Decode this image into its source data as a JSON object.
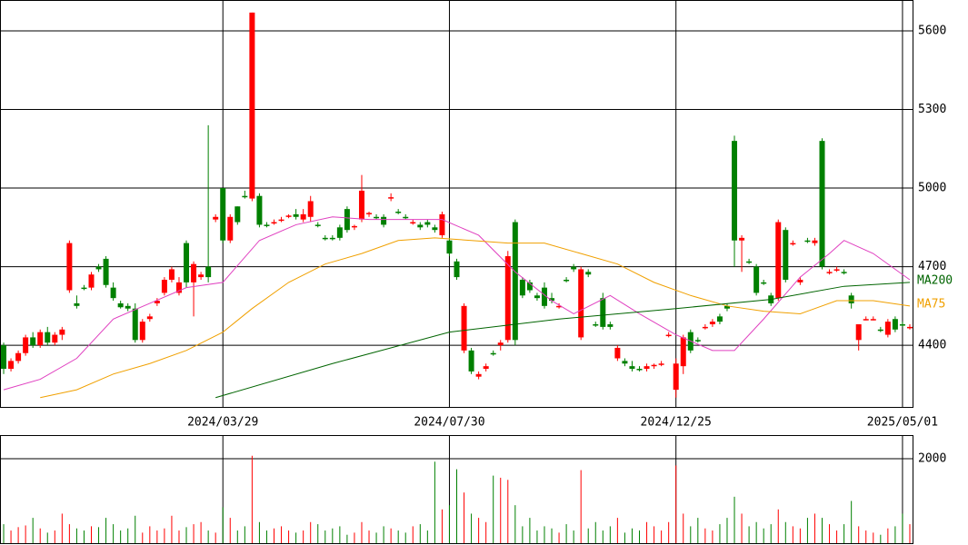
{
  "chart_data": {
    "type": "candlestick",
    "categories": [
      null,
      null,
      null,
      null,
      null,
      null,
      null,
      null,
      null,
      null,
      null,
      null,
      null,
      null,
      null,
      null,
      null,
      null,
      null,
      null,
      null,
      null,
      null,
      null,
      null,
      null,
      null,
      null,
      null,
      null,
      "2024/03/29",
      null,
      null,
      null,
      null,
      null,
      null,
      null,
      null,
      null,
      null,
      null,
      null,
      null,
      null,
      null,
      null,
      null,
      null,
      null,
      null,
      null,
      null,
      null,
      null,
      null,
      null,
      null,
      null,
      null,
      null,
      "2024/07/30",
      null,
      null,
      null,
      null,
      null,
      null,
      null,
      null,
      null,
      null,
      null,
      null,
      null,
      null,
      null,
      null,
      null,
      null,
      null,
      null,
      null,
      null,
      null,
      null,
      null,
      null,
      null,
      null,
      null,
      null,
      "2024/12/25",
      null,
      null,
      null,
      null,
      null,
      null,
      null,
      null,
      null,
      null,
      null,
      null,
      null,
      null,
      null,
      null,
      null,
      null,
      null,
      null,
      null,
      null,
      null,
      null,
      null,
      null,
      null,
      null,
      null,
      null,
      "2025/05/01",
      null
    ],
    "open": [
      4400,
      4310,
      4340,
      4370,
      4430,
      4400,
      4450,
      4410,
      4440,
      4610,
      4560,
      4620,
      4620,
      4700,
      4730,
      4620,
      4560,
      4550,
      4540,
      4420,
      4500,
      4560,
      4600,
      4650,
      4600,
      4790,
      4640,
      4660,
      4700,
      4880,
      5000,
      4800,
      4930,
      4970,
      4960,
      4970,
      4860,
      4870,
      4880,
      4890,
      4900,
      4880,
      4890,
      4860,
      4810,
      4810,
      4850,
      4920,
      4850,
      4880,
      4900,
      4890,
      4890,
      4960,
      4910,
      4890,
      4870,
      4860,
      4870,
      4850,
      4820,
      4800,
      4720,
      4380,
      4380,
      4280,
      4310,
      4370,
      4400,
      4420,
      4870,
      4650,
      4640,
      4590,
      4620,
      4580,
      4550,
      4650,
      4700,
      4430,
      4680,
      4480,
      4580,
      4480,
      4350,
      4340,
      4320,
      4310,
      4310,
      4320,
      4330,
      4440,
      4230,
      4320,
      4450,
      4420,
      4470,
      4480,
      4510,
      4550,
      5180,
      4800,
      4720,
      4700,
      4640,
      4590,
      4580,
      4840,
      4790,
      4640,
      4800,
      4790,
      5180,
      4680,
      4690,
      4680,
      4590,
      4420,
      4500,
      4500,
      4460,
      4440,
      4500,
      4480,
      4470
    ],
    "high": [
      4410,
      4350,
      4380,
      4440,
      4450,
      4460,
      4470,
      4450,
      4470,
      4800,
      4590,
      4630,
      4680,
      4710,
      4740,
      4640,
      4570,
      4560,
      4560,
      4500,
      4520,
      4580,
      4660,
      4700,
      4660,
      4800,
      4720,
      4680,
      5240,
      4900,
      5000,
      4900,
      4930,
      4990,
      5670,
      4980,
      4870,
      4880,
      4890,
      4900,
      4920,
      4920,
      4970,
      4870,
      4820,
      4820,
      4860,
      4930,
      4860,
      5050,
      4910,
      4900,
      4900,
      4980,
      4920,
      4900,
      4880,
      4870,
      4880,
      4860,
      4910,
      4810,
      4730,
      4560,
      4390,
      4300,
      4330,
      4380,
      4420,
      4760,
      4880,
      4660,
      4650,
      4600,
      4640,
      4600,
      4560,
      4660,
      4710,
      4700,
      4690,
      4490,
      4600,
      4490,
      4400,
      4350,
      4340,
      4320,
      4330,
      4330,
      4340,
      4450,
      4350,
      4440,
      4460,
      4430,
      4480,
      4500,
      4520,
      4560,
      5200,
      4820,
      4730,
      4710,
      4650,
      4600,
      4880,
      4850,
      4800,
      4660,
      4810,
      4810,
      5190,
      4690,
      4700,
      4690,
      4600,
      4480,
      4510,
      4510,
      4470,
      4500,
      4510,
      4490,
      4480
    ],
    "low": [
      4290,
      4300,
      4330,
      4360,
      4390,
      4390,
      4400,
      4400,
      4420,
      4600,
      4540,
      4610,
      4610,
      4680,
      4620,
      4570,
      4540,
      4530,
      4410,
      4410,
      4490,
      4550,
      4590,
      4640,
      4590,
      4620,
      4510,
      4650,
      4640,
      4870,
      4790,
      4790,
      4860,
      4960,
      4950,
      4850,
      4850,
      4860,
      4870,
      4885,
      4880,
      4870,
      4870,
      4850,
      4800,
      4800,
      4800,
      4830,
      4840,
      4870,
      4890,
      4880,
      4850,
      4950,
      4900,
      4880,
      4860,
      4840,
      4850,
      4830,
      4810,
      4740,
      4650,
      4370,
      4290,
      4270,
      4300,
      4360,
      4380,
      4410,
      4400,
      4580,
      4600,
      4570,
      4540,
      4560,
      4540,
      4640,
      4680,
      4420,
      4660,
      4470,
      4460,
      4460,
      4340,
      4320,
      4300,
      4300,
      4300,
      4310,
      4320,
      4430,
      4200,
      4290,
      4370,
      4410,
      4460,
      4470,
      4480,
      4530,
      4700,
      4680,
      4710,
      4590,
      4630,
      4550,
      4570,
      4640,
      4780,
      4630,
      4790,
      4780,
      4690,
      4670,
      4680,
      4670,
      4540,
      4380,
      4495,
      4495,
      4450,
      4430,
      4450,
      4470,
      4460
    ],
    "close": [
      4310,
      4340,
      4370,
      4430,
      4400,
      4450,
      4410,
      4440,
      4460,
      4790,
      4550,
      4615,
      4670,
      4690,
      4630,
      4580,
      4545,
      4540,
      4420,
      4490,
      4510,
      4570,
      4650,
      4690,
      4640,
      4640,
      4710,
      4670,
      4660,
      4890,
      4800,
      4890,
      4870,
      4965,
      5670,
      4860,
      4855,
      4870,
      4880,
      4895,
      4890,
      4900,
      4950,
      4855,
      4805,
      4805,
      4810,
      4840,
      4855,
      4990,
      4905,
      4885,
      4860,
      4965,
      4905,
      4885,
      4870,
      4850,
      4860,
      4840,
      4900,
      4750,
      4660,
      4550,
      4300,
      4290,
      4320,
      4365,
      4410,
      4740,
      4420,
      4590,
      4610,
      4580,
      4550,
      4570,
      4550,
      4645,
      4690,
      4690,
      4670,
      4475,
      4470,
      4470,
      4390,
      4330,
      4310,
      4305,
      4320,
      4325,
      4330,
      4440,
      4330,
      4430,
      4380,
      4415,
      4470,
      4490,
      4490,
      4540,
      4800,
      4810,
      4715,
      4600,
      4635,
      4560,
      4870,
      4650,
      4790,
      4650,
      4795,
      4800,
      4700,
      4680,
      4690,
      4675,
      4560,
      4480,
      4500,
      4500,
      4455,
      4490,
      4460,
      4475,
      4470
    ],
    "up_color": "#ff0000",
    "down_color": "#008000",
    "ylim": [
      4161,
      5718
    ],
    "yticks": [
      4400,
      4700,
      5000,
      5300,
      5600
    ],
    "moving_averages": [
      {
        "color": "#e040c0",
        "x": [
          0,
          5,
          10,
          15,
          20,
          25,
          30,
          35,
          40,
          45,
          50,
          55,
          60,
          65,
          70,
          75,
          78,
          83,
          87,
          92,
          97,
          100,
          104,
          109,
          113,
          115,
          119,
          124
        ],
        "values": [
          4230,
          4270,
          4350,
          4500,
          4560,
          4620,
          4640,
          4800,
          4860,
          4890,
          4880,
          4880,
          4880,
          4820,
          4680,
          4570,
          4520,
          4590,
          4520,
          4440,
          4380,
          4380,
          4500,
          4660,
          4750,
          4800,
          4750,
          4650
        ]
      },
      {
        "name": "MA75",
        "color": "#f0a000",
        "x": [
          5,
          10,
          15,
          20,
          25,
          30,
          34,
          39,
          44,
          49,
          54,
          59,
          64,
          69,
          74,
          79,
          84,
          89,
          94,
          99,
          104,
          109,
          114,
          119,
          124
        ],
        "values": [
          4200,
          4230,
          4290,
          4330,
          4380,
          4450,
          4540,
          4640,
          4710,
          4750,
          4800,
          4810,
          4800,
          4790,
          4790,
          4750,
          4710,
          4640,
          4590,
          4550,
          4530,
          4520,
          4570,
          4570,
          4550
        ]
      },
      {
        "name": "MA200",
        "color": "#006400",
        "x": [
          29,
          45,
          61,
          76,
          92,
          105,
          115,
          124
        ],
        "values": [
          4200,
          4330,
          4450,
          4500,
          4540,
          4575,
          4625,
          4640
        ]
      }
    ],
    "volume": [
      450,
      300,
      380,
      420,
      600,
      350,
      250,
      300,
      700,
      450,
      350,
      300,
      400,
      380,
      600,
      450,
      300,
      350,
      650,
      250,
      400,
      300,
      350,
      650,
      300,
      380,
      450,
      500,
      300,
      250,
      850,
      600,
      300,
      400,
      2070,
      500,
      300,
      350,
      400,
      300,
      250,
      300,
      500,
      450,
      300,
      350,
      400,
      200,
      250,
      500,
      300,
      250,
      400,
      350,
      300,
      250,
      400,
      450,
      300,
      1930,
      800,
      900,
      1750,
      1200,
      700,
      600,
      500,
      1600,
      1550,
      1500,
      900,
      400,
      600,
      300,
      400,
      350,
      250,
      450,
      300,
      1730,
      350,
      500,
      300,
      400,
      600,
      250,
      350,
      300,
      500,
      400,
      300,
      500,
      1840,
      700,
      400,
      600,
      350,
      300,
      450,
      600,
      1100,
      700,
      400,
      500,
      350,
      450,
      800,
      500,
      400,
      350,
      600,
      700,
      600,
      450,
      300,
      450,
      1000,
      400,
      300,
      250,
      200,
      350,
      400,
      700,
      450
    ],
    "volume_ylim": [
      0,
      2538
    ],
    "volume_yticks": [
      2000
    ]
  }
}
